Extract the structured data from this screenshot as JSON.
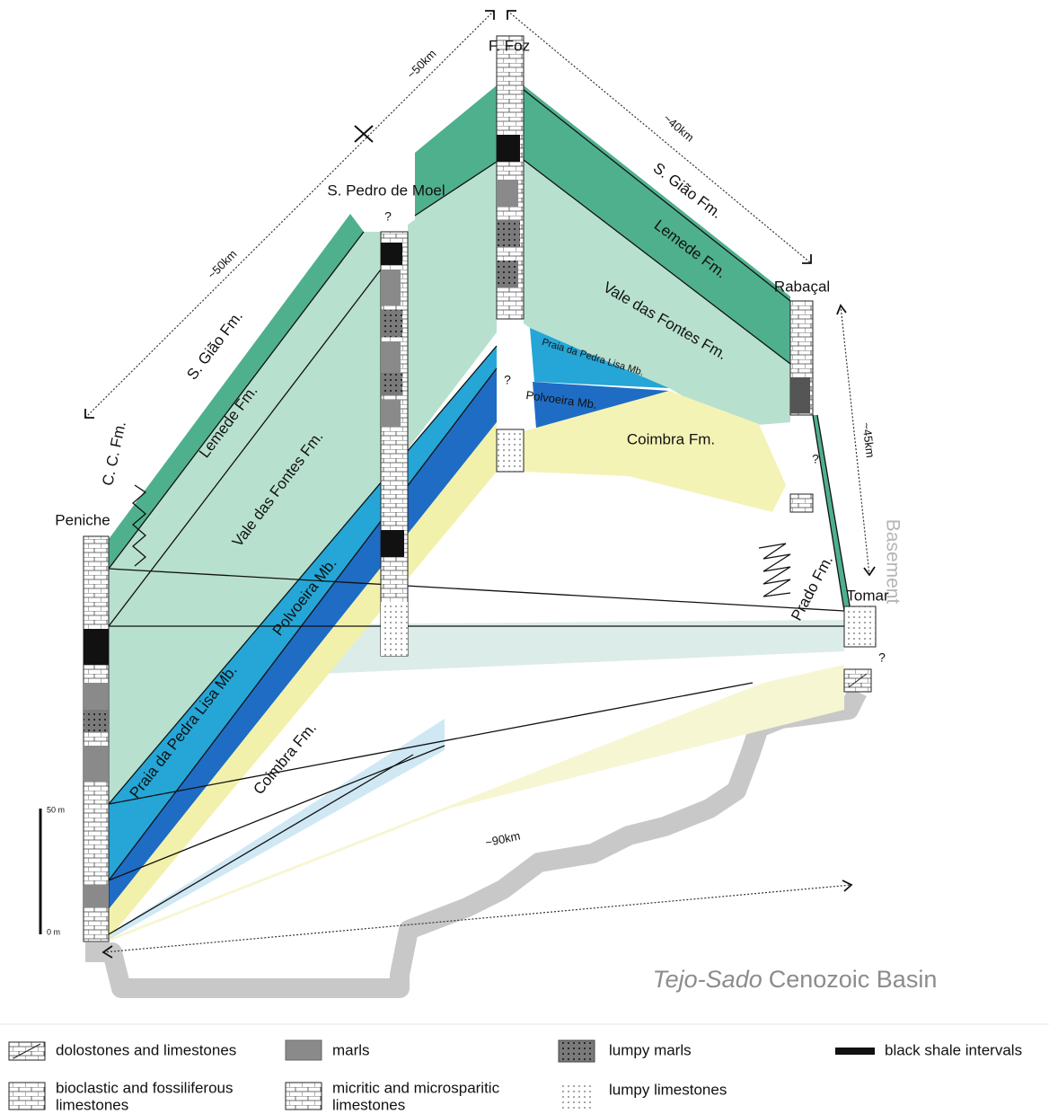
{
  "localities": [
    "F. Foz",
    "S. Pedro de Moel",
    "Rabaçal",
    "Peniche",
    "Tomar"
  ],
  "distances": [
    "~50km",
    "~50km",
    "~40km",
    "~45km",
    "~90km"
  ],
  "formation_labels": [
    "C. C. Fm.",
    "S. Gião Fm.",
    "Lemede Fm.",
    "Vale das Fontes Fm.",
    "Praia da Pedra Lisa Mb.",
    "Polvoeira Mb.",
    "Coimbra Fm.",
    "S. Gião Fm.",
    "Lemede Fm.",
    "Vale das Fontes Fm.",
    "Praia da Pedra Lisa Mb.",
    "Polvoeira Mb.",
    "Coimbra Fm.",
    "Prado Fm."
  ],
  "question_marks": [
    "?",
    "?",
    "?",
    "?"
  ],
  "basement_label": "Basement",
  "basin_label": {
    "italic": "Tejo-Sado",
    "rest": "Cenozoic Basin"
  },
  "scale_bar": {
    "top": "50 m",
    "bottom": "0 m"
  },
  "legend": [
    {
      "lines": [
        "dolostones and limestones"
      ]
    },
    {
      "lines": [
        "marls"
      ]
    },
    {
      "lines": [
        "lumpy marls"
      ]
    },
    {
      "lines": [
        "black shale intervals"
      ]
    },
    {
      "lines": [
        "bioclastic and fossiliferous",
        "limestones"
      ]
    },
    {
      "lines": [
        "micritic and microsparitic",
        "limestones"
      ]
    },
    {
      "lines": [
        "lumpy limestones"
      ]
    }
  ]
}
